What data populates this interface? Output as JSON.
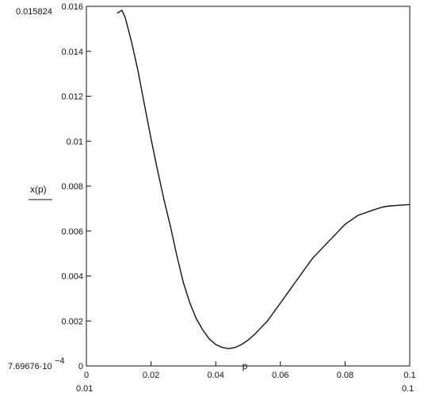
{
  "chart_data": {
    "type": "line",
    "xlabel": "p",
    "ylabel": "x(p)",
    "xlim": [
      0,
      0.1
    ],
    "ylim": [
      0,
      0.016
    ],
    "x_ticks": [
      "0",
      "0.02",
      "0.04",
      "0.06",
      "0.08",
      "0.1"
    ],
    "y_ticks": [
      "0",
      "0.002",
      "0.004",
      "0.006",
      "0.008",
      "0.01",
      "0.012",
      "0.014",
      "0.016"
    ],
    "range_labels": {
      "y_max": "0.015824",
      "y_min": "7.69676·10",
      "y_min_exp": "−4",
      "x_min": "0.01",
      "x_max": "0.1"
    },
    "grid": false,
    "series": [
      {
        "x": [
          0.0095,
          0.011,
          0.012,
          0.014,
          0.016,
          0.018,
          0.02,
          0.022,
          0.024,
          0.026,
          0.028,
          0.03,
          0.032,
          0.034,
          0.036,
          0.038,
          0.04,
          0.042,
          0.044,
          0.046,
          0.048,
          0.05,
          0.052,
          0.054,
          0.056,
          0.058,
          0.06,
          0.062,
          0.064,
          0.066,
          0.068,
          0.07,
          0.072,
          0.074,
          0.076,
          0.078,
          0.08,
          0.082,
          0.084,
          0.086,
          0.088,
          0.09,
          0.092,
          0.094,
          0.096,
          0.098,
          0.1
        ],
        "y": [
          0.0157,
          0.01582,
          0.0155,
          0.0144,
          0.0131,
          0.0116,
          0.0101,
          0.0087,
          0.0074,
          0.0062,
          0.0049,
          0.0037,
          0.0028,
          0.0021,
          0.0016,
          0.0012,
          0.00095,
          0.00082,
          0.00077,
          0.00082,
          0.00095,
          0.00115,
          0.0014,
          0.0017,
          0.002,
          0.0024,
          0.0028,
          0.0032,
          0.0036,
          0.004,
          0.0044,
          0.0048,
          0.0051,
          0.0054,
          0.0057,
          0.006,
          0.0063,
          0.0065,
          0.0067,
          0.0068,
          0.0069,
          0.007,
          0.00708,
          0.00712,
          0.00714,
          0.00716,
          0.00718
        ]
      }
    ]
  }
}
